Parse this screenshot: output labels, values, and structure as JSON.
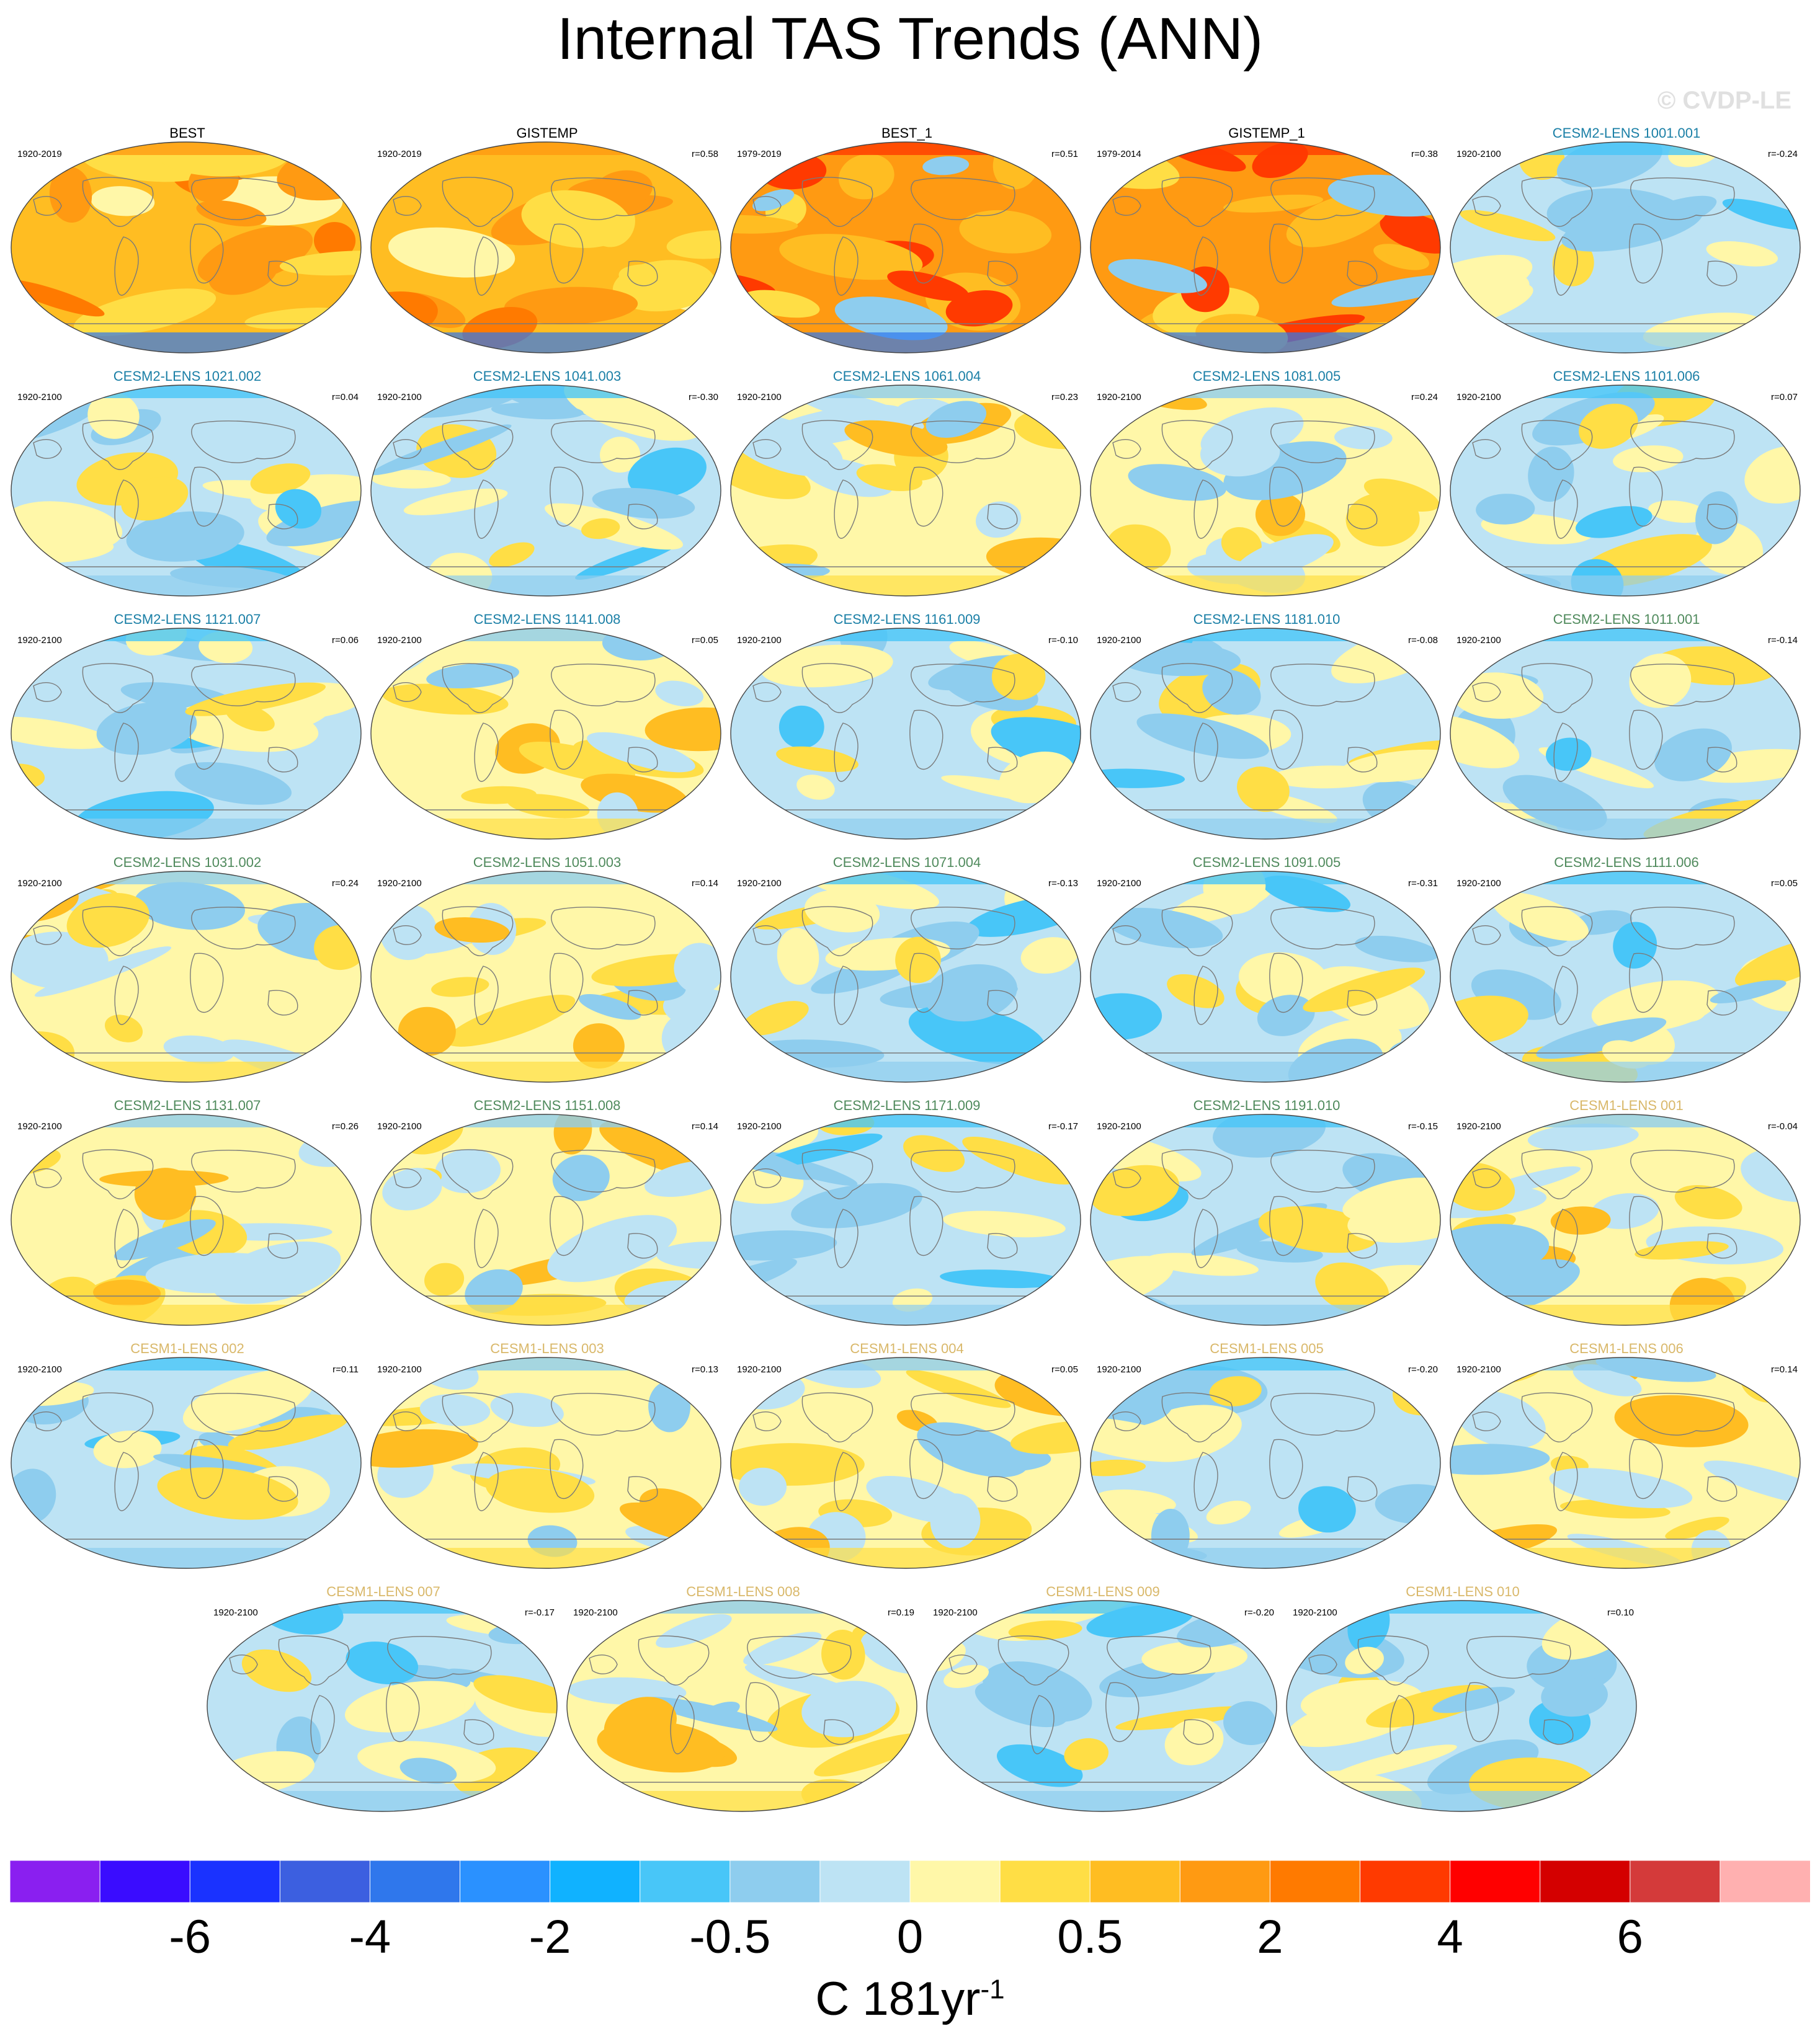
{
  "title": "Internal TAS Trends (ANN)",
  "watermark": "© CVDP-LE",
  "colorbar": {
    "colors": [
      "#8a1ff0",
      "#3a0cff",
      "#1a32ff",
      "#3c5fe0",
      "#2f77ec",
      "#2a91ff",
      "#10b2ff",
      "#48c6f8",
      "#8ecdee",
      "#bde3f4",
      "#fff7a8",
      "#ffde45",
      "#ffbd22",
      "#ff9a12",
      "#ff7a00",
      "#ff3a00",
      "#ff0000",
      "#d40000",
      "#d43a3a",
      "#ffb0b0"
    ],
    "labels": [
      "-6",
      "-4",
      "-2",
      "-0.5",
      "0",
      "0.5",
      "2",
      "4",
      "6"
    ],
    "units_text": "C 181yr",
    "units_sup": "-1"
  },
  "group_colors": {
    "obs": "#000000",
    "cesm2a": "#1a7fa6",
    "cesm2b": "#4f8a5c",
    "cesm1": "#d9b86a"
  },
  "panels": [
    {
      "title": "BEST",
      "group": "obs",
      "period": "1920-2019",
      "r": "",
      "style": "warm"
    },
    {
      "title": "GISTEMP",
      "group": "obs",
      "period": "1920-2019",
      "r": "r=0.58",
      "style": "warm"
    },
    {
      "title": "BEST_1",
      "group": "obs",
      "period": "1979-2019",
      "r": "r=0.51",
      "style": "hot"
    },
    {
      "title": "GISTEMP_1",
      "group": "obs",
      "period": "1979-2014",
      "r": "r=0.38",
      "style": "hot"
    },
    {
      "title": "CESM2-LENS 1001.001",
      "group": "cesm2a",
      "period": "1920-2100",
      "r": "r=-0.24",
      "style": "cool"
    },
    {
      "title": "CESM2-LENS 1021.002",
      "group": "cesm2a",
      "period": "1920-2100",
      "r": "r=0.04",
      "style": "cool"
    },
    {
      "title": "CESM2-LENS 1041.003",
      "group": "cesm2a",
      "period": "1920-2100",
      "r": "r=-0.30",
      "style": "cool"
    },
    {
      "title": "CESM2-LENS 1061.004",
      "group": "cesm2a",
      "period": "1920-2100",
      "r": "r=0.23",
      "style": "mixed"
    },
    {
      "title": "CESM2-LENS 1081.005",
      "group": "cesm2a",
      "period": "1920-2100",
      "r": "r=0.24",
      "style": "mixed"
    },
    {
      "title": "CESM2-LENS 1101.006",
      "group": "cesm2a",
      "period": "1920-2100",
      "r": "r=0.07",
      "style": "cool"
    },
    {
      "title": "CESM2-LENS 1121.007",
      "group": "cesm2a",
      "period": "1920-2100",
      "r": "r=0.06",
      "style": "cool"
    },
    {
      "title": "CESM2-LENS 1141.008",
      "group": "cesm2a",
      "period": "1920-2100",
      "r": "r=0.05",
      "style": "mixed"
    },
    {
      "title": "CESM2-LENS 1161.009",
      "group": "cesm2a",
      "period": "1920-2100",
      "r": "r=-0.10",
      "style": "cool"
    },
    {
      "title": "CESM2-LENS 1181.010",
      "group": "cesm2a",
      "period": "1920-2100",
      "r": "r=-0.08",
      "style": "cool"
    },
    {
      "title": "CESM2-LENS 1011.001",
      "group": "cesm2b",
      "period": "1920-2100",
      "r": "r=-0.14",
      "style": "cool"
    },
    {
      "title": "CESM2-LENS 1031.002",
      "group": "cesm2b",
      "period": "1920-2100",
      "r": "r=0.24",
      "style": "mixed"
    },
    {
      "title": "CESM2-LENS 1051.003",
      "group": "cesm2b",
      "period": "1920-2100",
      "r": "r=0.14",
      "style": "mixed"
    },
    {
      "title": "CESM2-LENS 1071.004",
      "group": "cesm2b",
      "period": "1920-2100",
      "r": "r=-0.13",
      "style": "cool"
    },
    {
      "title": "CESM2-LENS 1091.005",
      "group": "cesm2b",
      "period": "1920-2100",
      "r": "r=-0.31",
      "style": "cool"
    },
    {
      "title": "CESM2-LENS 1111.006",
      "group": "cesm2b",
      "period": "1920-2100",
      "r": "r=0.05",
      "style": "cool"
    },
    {
      "title": "CESM2-LENS 1131.007",
      "group": "cesm2b",
      "period": "1920-2100",
      "r": "r=0.26",
      "style": "mixed"
    },
    {
      "title": "CESM2-LENS 1151.008",
      "group": "cesm2b",
      "period": "1920-2100",
      "r": "r=0.14",
      "style": "mixed"
    },
    {
      "title": "CESM2-LENS 1171.009",
      "group": "cesm2b",
      "period": "1920-2100",
      "r": "r=-0.17",
      "style": "cool"
    },
    {
      "title": "CESM2-LENS 1191.010",
      "group": "cesm2b",
      "period": "1920-2100",
      "r": "r=-0.15",
      "style": "cool"
    },
    {
      "title": "CESM1-LENS 001",
      "group": "cesm1",
      "period": "1920-2100",
      "r": "r=-0.04",
      "style": "mixed"
    },
    {
      "title": "CESM1-LENS 002",
      "group": "cesm1",
      "period": "1920-2100",
      "r": "r=0.11",
      "style": "cool"
    },
    {
      "title": "CESM1-LENS 003",
      "group": "cesm1",
      "period": "1920-2100",
      "r": "r=0.13",
      "style": "mixed"
    },
    {
      "title": "CESM1-LENS 004",
      "group": "cesm1",
      "period": "1920-2100",
      "r": "r=0.05",
      "style": "mixed"
    },
    {
      "title": "CESM1-LENS 005",
      "group": "cesm1",
      "period": "1920-2100",
      "r": "r=-0.20",
      "style": "cool"
    },
    {
      "title": "CESM1-LENS 006",
      "group": "cesm1",
      "period": "1920-2100",
      "r": "r=0.14",
      "style": "mixed"
    },
    {
      "title": "CESM1-LENS 007",
      "group": "cesm1",
      "period": "1920-2100",
      "r": "r=-0.17",
      "style": "cool"
    },
    {
      "title": "CESM1-LENS 008",
      "group": "cesm1",
      "period": "1920-2100",
      "r": "r=0.19",
      "style": "mixed"
    },
    {
      "title": "CESM1-LENS 009",
      "group": "cesm1",
      "period": "1920-2100",
      "r": "r=-0.20",
      "style": "cool"
    },
    {
      "title": "CESM1-LENS 010",
      "group": "cesm1",
      "period": "1920-2100",
      "r": "r=0.10",
      "style": "cool"
    }
  ]
}
